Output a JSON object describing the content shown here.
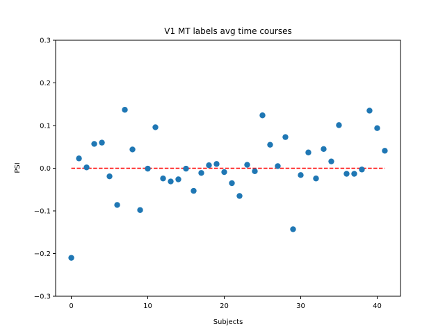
{
  "chart_data": {
    "type": "scatter",
    "title": "V1 MT labels avg time courses",
    "xlabel": "Subjects",
    "ylabel": "PSI",
    "xlim": [
      -2.05,
      43.05
    ],
    "ylim": [
      -0.3,
      0.3
    ],
    "xticks": [
      0,
      10,
      20,
      30,
      40
    ],
    "yticks": [
      -0.3,
      -0.2,
      -0.1,
      0.0,
      0.1,
      0.2,
      0.3
    ],
    "xtick_labels": [
      "0",
      "10",
      "20",
      "30",
      "40"
    ],
    "ytick_labels": [
      "−0.3",
      "−0.2",
      "−0.1",
      "0.0",
      "0.1",
      "0.2",
      "0.3"
    ],
    "grid": false,
    "point_color": "#1f77b4",
    "reference_line": {
      "y": 0,
      "x_range": [
        0,
        41
      ],
      "color": "#ff0000",
      "style": "dashed"
    },
    "points": {
      "x": [
        0,
        1,
        2,
        3,
        4,
        5,
        6,
        7,
        8,
        9,
        10,
        11,
        12,
        13,
        14,
        15,
        16,
        17,
        18,
        19,
        20,
        21,
        22,
        23,
        24,
        25,
        26,
        27,
        28,
        29,
        30,
        31,
        32,
        33,
        34,
        35,
        36,
        37,
        38,
        39,
        40,
        41
      ],
      "y": [
        -0.21,
        0.023,
        0.002,
        0.057,
        0.06,
        -0.019,
        -0.086,
        0.137,
        0.044,
        -0.098,
        -0.001,
        0.096,
        -0.024,
        -0.031,
        -0.026,
        -0.001,
        -0.053,
        -0.011,
        0.007,
        0.01,
        -0.009,
        -0.035,
        -0.065,
        0.008,
        -0.007,
        0.124,
        0.055,
        0.005,
        0.073,
        -0.143,
        -0.016,
        0.037,
        -0.024,
        0.045,
        0.016,
        0.101,
        -0.013,
        -0.013,
        -0.003,
        0.135,
        0.094,
        0.041
      ]
    }
  }
}
